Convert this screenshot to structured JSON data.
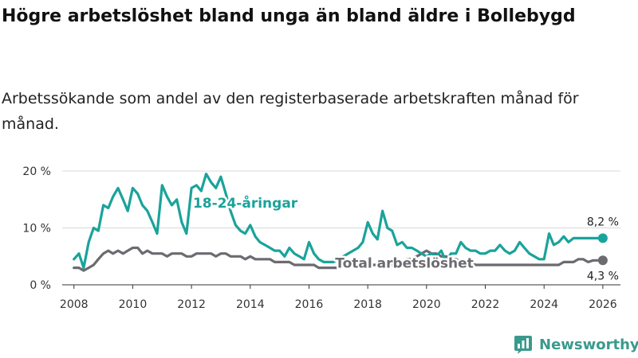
{
  "header": {
    "title": "Högre arbetslöshet bland unga än bland äldre i Bollebygd",
    "subtitle": "Arbetssökande som andel av den registerbaserade arbetskraften månad för månad."
  },
  "brand": {
    "name": "Newsworthy",
    "icon": "bar-chart-logo-icon",
    "color": "#3a9a8c"
  },
  "chart_data": {
    "type": "line",
    "title": "Högre arbetslöshet bland unga än bland äldre i Bollebygd",
    "xlabel": "",
    "ylabel": "",
    "xlim": [
      2007.6,
      2026.6
    ],
    "ylim": [
      0,
      20
    ],
    "grid": true,
    "x_ticks": [
      2008,
      2010,
      2012,
      2014,
      2016,
      2018,
      2020,
      2022,
      2024,
      2026
    ],
    "x_tick_labels": [
      "2008",
      "2010",
      "2012",
      "2014",
      "2016",
      "2018",
      "2020",
      "2022",
      "2024",
      "2026"
    ],
    "y_ticks": [
      0,
      10,
      20
    ],
    "y_tick_labels": [
      "0 %",
      "10 %",
      "20 %"
    ],
    "legend": "inline labels",
    "series": [
      {
        "name": "18-24-åringar",
        "color": "#1aa39a",
        "end_label": "8,2 %",
        "end_value": 8.2,
        "x": [
          2008.0,
          2008.17,
          2008.33,
          2008.5,
          2008.67,
          2008.83,
          2009.0,
          2009.17,
          2009.33,
          2009.5,
          2009.67,
          2009.83,
          2010.0,
          2010.17,
          2010.33,
          2010.5,
          2010.67,
          2010.83,
          2011.0,
          2011.17,
          2011.33,
          2011.5,
          2011.67,
          2011.83,
          2012.0,
          2012.17,
          2012.33,
          2012.5,
          2012.67,
          2012.83,
          2013.0,
          2013.17,
          2013.33,
          2013.5,
          2013.67,
          2013.83,
          2014.0,
          2014.17,
          2014.33,
          2014.5,
          2014.67,
          2014.83,
          2015.0,
          2015.17,
          2015.33,
          2015.5,
          2015.67,
          2015.83,
          2016.0,
          2016.17,
          2016.33,
          2016.5,
          2016.67,
          2016.83,
          2017.0,
          2017.17,
          2017.33,
          2017.5,
          2017.67,
          2017.83,
          2018.0,
          2018.17,
          2018.33,
          2018.5,
          2018.67,
          2018.83,
          2019.0,
          2019.17,
          2019.33,
          2019.5,
          2019.67,
          2019.83,
          2020.0,
          2020.17,
          2020.33,
          2020.5,
          2020.67,
          2020.83,
          2021.0,
          2021.17,
          2021.33,
          2021.5,
          2021.67,
          2021.83,
          2022.0,
          2022.17,
          2022.33,
          2022.5,
          2022.67,
          2022.83,
          2023.0,
          2023.17,
          2023.33,
          2023.5,
          2023.67,
          2023.83,
          2024.0,
          2024.17,
          2024.33,
          2024.5,
          2024.67,
          2024.83,
          2025.0,
          2025.17,
          2025.33,
          2025.5,
          2025.67,
          2025.83,
          2026.0
        ],
        "values": [
          4.5,
          5.5,
          3.0,
          7.5,
          10.0,
          9.5,
          14.0,
          13.5,
          15.5,
          17.0,
          15.0,
          13.0,
          17.0,
          16.0,
          14.0,
          13.0,
          11.0,
          9.0,
          17.5,
          15.5,
          14.0,
          15.0,
          11.0,
          9.0,
          17.0,
          17.5,
          16.5,
          19.5,
          18.0,
          17.0,
          19.0,
          16.0,
          13.0,
          10.5,
          9.5,
          9.0,
          10.5,
          8.5,
          7.5,
          7.0,
          6.5,
          6.0,
          6.0,
          5.0,
          6.5,
          5.5,
          5.0,
          4.5,
          7.5,
          5.5,
          4.5,
          4.0,
          4.0,
          4.0,
          4.5,
          5.0,
          5.5,
          6.0,
          6.5,
          7.5,
          11.0,
          9.0,
          8.0,
          13.0,
          10.0,
          9.5,
          7.0,
          7.5,
          6.5,
          6.5,
          6.0,
          5.5,
          5.0,
          5.5,
          5.0,
          6.0,
          4.0,
          5.5,
          5.5,
          7.5,
          6.5,
          6.0,
          6.0,
          5.5,
          5.5,
          6.0,
          6.0,
          7.0,
          6.0,
          5.5,
          6.0,
          7.5,
          6.5,
          5.5,
          5.0,
          4.5,
          4.5,
          9.0,
          7.0,
          7.5,
          8.5,
          7.5,
          8.2,
          8.2,
          8.2,
          8.2,
          8.2,
          8.2,
          8.2
        ]
      },
      {
        "name": "Total arbetslöshet",
        "color": "#6b6b70",
        "end_label": "4,3 %",
        "end_value": 4.3,
        "x": [
          2008.0,
          2008.17,
          2008.33,
          2008.5,
          2008.67,
          2008.83,
          2009.0,
          2009.17,
          2009.33,
          2009.5,
          2009.67,
          2009.83,
          2010.0,
          2010.17,
          2010.33,
          2010.5,
          2010.67,
          2010.83,
          2011.0,
          2011.17,
          2011.33,
          2011.5,
          2011.67,
          2011.83,
          2012.0,
          2012.17,
          2012.33,
          2012.5,
          2012.67,
          2012.83,
          2013.0,
          2013.17,
          2013.33,
          2013.5,
          2013.67,
          2013.83,
          2014.0,
          2014.17,
          2014.33,
          2014.5,
          2014.67,
          2014.83,
          2015.0,
          2015.17,
          2015.33,
          2015.5,
          2015.67,
          2015.83,
          2016.0,
          2016.17,
          2016.33,
          2016.5,
          2016.67,
          2016.83,
          2017.0,
          2017.17,
          2017.33,
          2017.5,
          2017.67,
          2017.83,
          2018.0,
          2018.17,
          2018.33,
          2018.5,
          2018.67,
          2018.83,
          2019.0,
          2019.17,
          2019.33,
          2019.5,
          2019.67,
          2019.83,
          2020.0,
          2020.17,
          2020.33,
          2020.5,
          2020.67,
          2020.83,
          2021.0,
          2021.17,
          2021.33,
          2021.5,
          2021.67,
          2021.83,
          2022.0,
          2022.17,
          2022.33,
          2022.5,
          2022.67,
          2022.83,
          2023.0,
          2023.17,
          2023.33,
          2023.5,
          2023.67,
          2023.83,
          2024.0,
          2024.17,
          2024.33,
          2024.5,
          2024.67,
          2024.83,
          2025.0,
          2025.17,
          2025.33,
          2025.5,
          2025.67,
          2025.83,
          2026.0
        ],
        "values": [
          3.0,
          3.0,
          2.5,
          3.0,
          3.5,
          4.5,
          5.5,
          6.0,
          5.5,
          6.0,
          5.5,
          6.0,
          6.5,
          6.5,
          5.5,
          6.0,
          5.5,
          5.5,
          5.5,
          5.0,
          5.5,
          5.5,
          5.5,
          5.0,
          5.0,
          5.5,
          5.5,
          5.5,
          5.5,
          5.0,
          5.5,
          5.5,
          5.0,
          5.0,
          5.0,
          4.5,
          5.0,
          4.5,
          4.5,
          4.5,
          4.5,
          4.0,
          4.0,
          4.0,
          4.0,
          3.5,
          3.5,
          3.5,
          3.5,
          3.5,
          3.0,
          3.0,
          3.0,
          3.0,
          3.0,
          3.5,
          3.5,
          3.5,
          3.5,
          3.5,
          3.5,
          3.5,
          3.5,
          3.5,
          3.5,
          3.5,
          4.0,
          4.0,
          4.5,
          4.5,
          5.0,
          5.5,
          6.0,
          5.5,
          5.5,
          5.0,
          5.0,
          4.5,
          4.5,
          4.0,
          4.0,
          4.0,
          3.5,
          3.5,
          3.5,
          3.5,
          3.5,
          3.5,
          3.5,
          3.5,
          3.5,
          3.5,
          3.5,
          3.5,
          3.5,
          3.5,
          3.5,
          3.5,
          3.5,
          3.5,
          4.0,
          4.0,
          4.0,
          4.5,
          4.5,
          4.0,
          4.3,
          4.3,
          4.3
        ]
      }
    ]
  }
}
